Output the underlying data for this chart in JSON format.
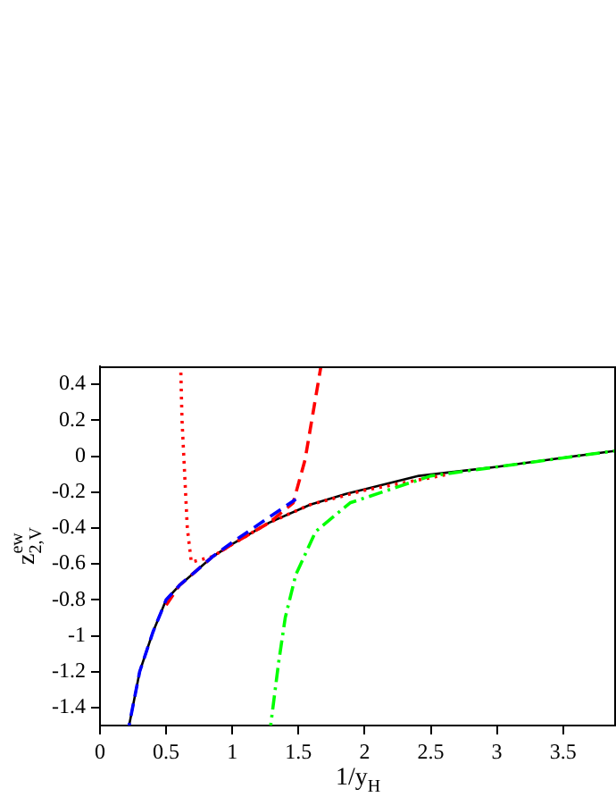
{
  "chart_data": {
    "type": "line",
    "xlabel": "1/y$_{H}$",
    "ylabel": "z$_{2,V}$$^{ew}$",
    "xlim": [
      0,
      3.9
    ],
    "ylim": [
      -1.5,
      0.5
    ],
    "xticks": [
      0,
      0.5,
      1,
      1.5,
      2,
      2.5,
      3,
      3.5
    ],
    "yticks": [
      -1.4,
      -1.2,
      -1,
      -0.8,
      -0.6,
      -0.4,
      -0.2,
      0,
      0.2,
      0.4
    ],
    "grid": false,
    "legend": false,
    "marker": "none",
    "series": [
      {
        "color": "#000000",
        "line_style": "solid",
        "x": [
          0.22,
          0.3,
          0.4,
          0.5,
          0.6,
          0.71,
          0.85,
          1.0,
          1.28,
          1.59,
          1.86,
          2.41,
          3.0,
          3.59,
          3.9
        ],
        "values": [
          -1.5,
          -1.2,
          -0.98,
          -0.8,
          -0.72,
          -0.65,
          -0.56,
          -0.49,
          -0.37,
          -0.27,
          -0.21,
          -0.11,
          -0.06,
          0,
          0.03
        ]
      },
      {
        "color": "#ff0000",
        "line_style": "dotted",
        "x": [
          0.61,
          0.62,
          0.64,
          0.66,
          0.69,
          0.85,
          1.0,
          1.28,
          1.59,
          2.0,
          2.64
        ],
        "values": [
          0.5,
          0.2,
          -0.1,
          -0.4,
          -0.59,
          -0.56,
          -0.49,
          -0.37,
          -0.27,
          -0.19,
          -0.1
        ]
      },
      {
        "color": "#ff0000",
        "line_style": "dashed",
        "x": [
          0.5,
          0.6,
          0.71,
          0.85,
          1.0,
          1.28,
          1.46,
          1.55,
          1.67
        ],
        "values": [
          -0.83,
          -0.72,
          -0.65,
          -0.56,
          -0.49,
          -0.37,
          -0.26,
          -0.02,
          0.5
        ]
      },
      {
        "color": "#0000ff",
        "line_style": "dashed",
        "x": [
          0.22,
          0.3,
          0.4,
          0.5,
          0.6,
          0.71,
          0.85,
          1.0,
          1.24,
          1.48
        ],
        "values": [
          -1.5,
          -1.2,
          -0.98,
          -0.8,
          -0.72,
          -0.65,
          -0.56,
          -0.48,
          -0.36,
          -0.24
        ]
      },
      {
        "color": "#00ff00",
        "line_style": "dashdot",
        "x": [
          1.29,
          1.35,
          1.4,
          1.48,
          1.63,
          1.89,
          2.5,
          3.0,
          3.5,
          3.9
        ],
        "values": [
          -1.5,
          -1.15,
          -0.9,
          -0.66,
          -0.42,
          -0.26,
          -0.11,
          -0.06,
          -0.01,
          0.03
        ]
      }
    ]
  }
}
